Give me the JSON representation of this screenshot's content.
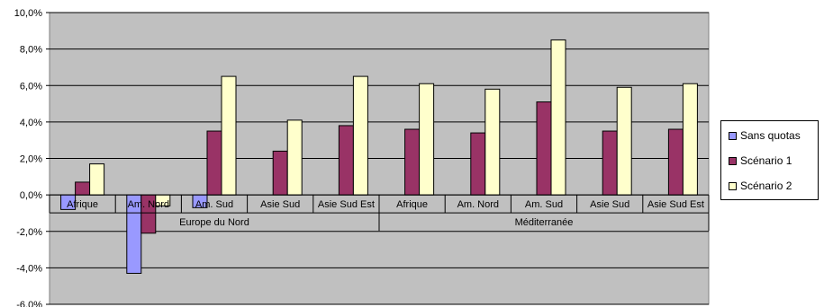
{
  "chart_data": {
    "type": "bar",
    "title": "",
    "xlabel": "",
    "ylabel": "",
    "ylim": [
      -6,
      10
    ],
    "y_ticks": [
      "10,0%",
      "8,0%",
      "6,0%",
      "4,0%",
      "2,0%",
      "0,0%",
      "-2,0%",
      "-4,0%",
      "-6,0%"
    ],
    "y_tick_values": [
      10,
      8,
      6,
      4,
      2,
      0,
      -2,
      -4,
      -6
    ],
    "grid": true,
    "plot_background": "#c0c0c0",
    "legend_position": "right",
    "categories": [
      "Afrique",
      "Am. Nord",
      "Am. Sud",
      "Asie Sud",
      "Asie Sud Est",
      "Afrique",
      "Am. Nord",
      "Am. Sud",
      "Asie Sud",
      "Asie Sud Est"
    ],
    "groups": [
      {
        "label": "Europe du Nord",
        "span": 5
      },
      {
        "label": "Méditerranée",
        "span": 5
      }
    ],
    "series": [
      {
        "name": "Sans quotas",
        "color": "#9999ff",
        "values": [
          -0.8,
          -4.3,
          -0.7,
          0,
          0,
          0,
          0,
          0,
          0,
          0
        ]
      },
      {
        "name": "Scénario 1",
        "color": "#993366",
        "values": [
          0.7,
          -2.1,
          3.5,
          2.4,
          3.8,
          3.6,
          3.4,
          5.1,
          3.5,
          3.6
        ]
      },
      {
        "name": "Scénario 2",
        "color": "#ffffcc",
        "values": [
          1.7,
          -0.6,
          6.5,
          4.1,
          6.5,
          6.1,
          5.8,
          8.5,
          5.9,
          6.1
        ]
      }
    ]
  }
}
